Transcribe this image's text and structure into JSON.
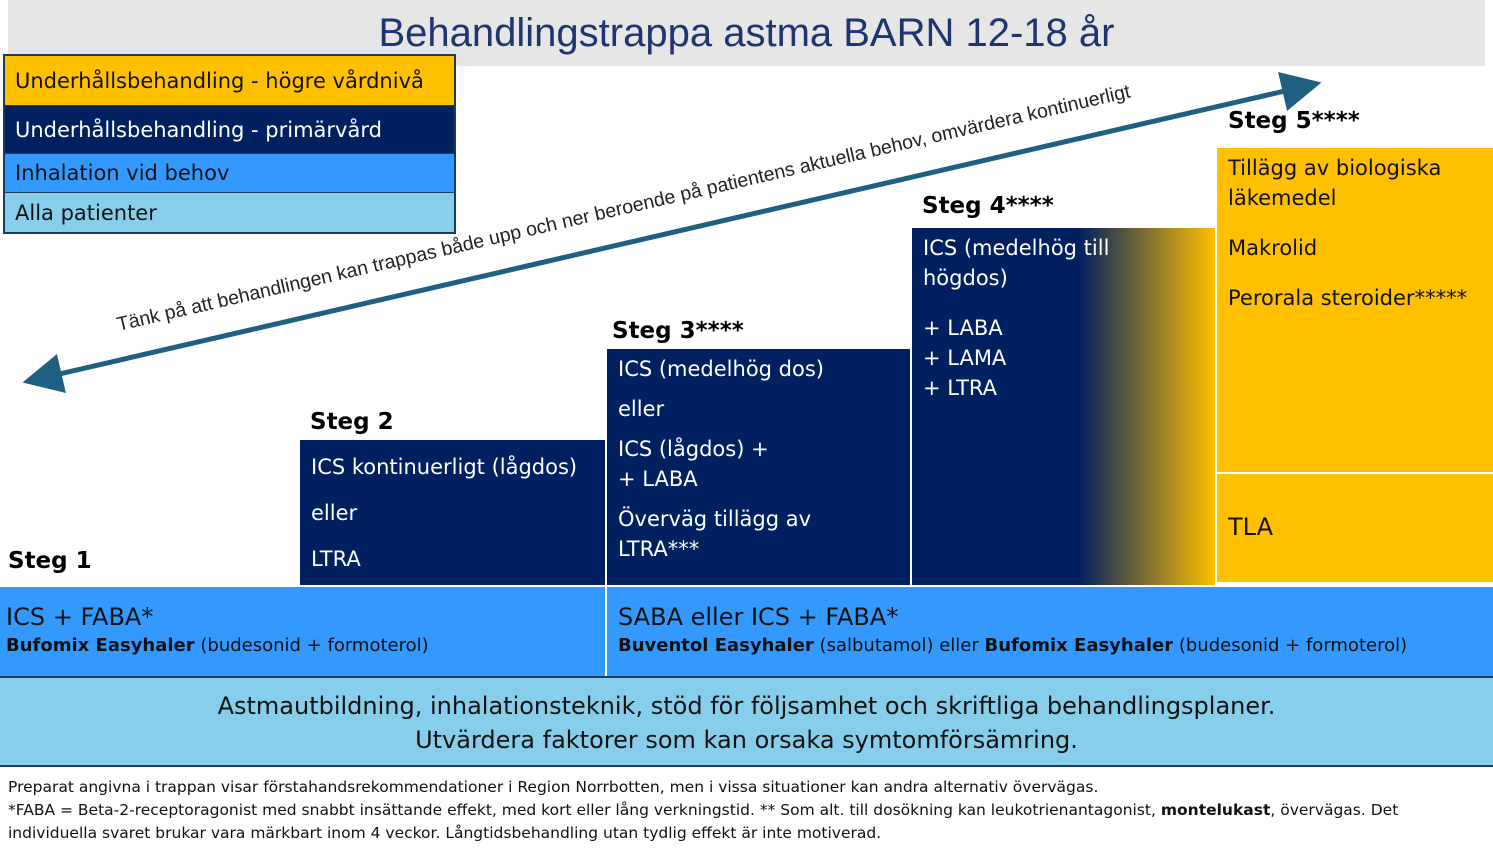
{
  "title": "Behandlingstrappa astma BARN 12-18 år",
  "legend": [
    "Underhållsbehandling - högre vårdnivå",
    "Underhållsbehandling - primärvård",
    "Inhalation vid behov",
    "Alla patienter"
  ],
  "arrow_text": "Tänk på att behandlingen kan trappas både upp och ner beroende på patientens aktuella behov, omvärdera kontinuerligt",
  "steps": [
    {
      "label": "Steg 1"
    },
    {
      "label": "Steg 2",
      "paragraphs": [
        [
          "ICS kontinuerligt (lågdos)"
        ],
        [
          "eller"
        ],
        [
          "LTRA"
        ]
      ]
    },
    {
      "label": "Steg 3****",
      "paragraphs": [
        [
          "ICS (medelhög dos)"
        ],
        [
          "eller"
        ],
        [
          "ICS (lågdos) +",
          "+ LABA"
        ],
        [
          "Överväg tillägg av",
          "LTRA***"
        ]
      ]
    },
    {
      "label": "Steg 4****",
      "paragraphs": [
        [
          "ICS (medelhög till",
          "högdos)"
        ],
        [
          "+ LABA",
          "+ LAMA",
          "+ LTRA"
        ]
      ]
    },
    {
      "label": "Steg 5****",
      "paragraphs": [
        [
          "Tillägg av biologiska",
          "läkemedel"
        ],
        [
          "Makrolid"
        ],
        [
          "Perorala steroider*****"
        ]
      ],
      "extra": "TLA"
    }
  ],
  "inhalation": {
    "left": {
      "heading": "ICS + FABA*",
      "drug": "Bufomix Easyhaler",
      "detail": "(budesonid + formoterol)"
    },
    "right": {
      "heading": "SABA eller ICS + FABA*",
      "drug1": "Buventol Easyhaler",
      "detail1": "(salbutamol) eller",
      "drug2": "Bufomix Easyhaler",
      "detail2": "(budesonid + formoterol)"
    }
  },
  "foundation": [
    "Astmautbildning, inhalationsteknik, stöd för följsamhet och skriftliga behandlingsplaner.",
    "Utvärdera faktorer som kan orsaka symtomförsämring."
  ],
  "footnotes": {
    "line1": "Preparat angivna i trappan visar förstahandsrekommendationer i Region Norrbotten, men i vissa situationer kan andra alternativ övervägas.",
    "line2_start": "*FABA = Beta-2-receptoragonist med snabbt insättande effekt, med kort eller lång verkningstid. ** Som alt. till dosökning kan leukotrienantagonist,",
    "line2_bold": "montelukast",
    "line2_end": ", övervägas. Det",
    "line3": "individuella svaret brukar vara märkbart inom 4 veckor. Långtidsbehandling utan tydlig effekt är inte motiverad."
  }
}
